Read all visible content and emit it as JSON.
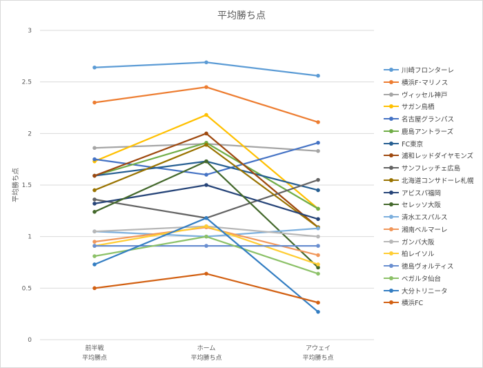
{
  "chart_data": {
    "type": "line",
    "title": "平均勝ち点",
    "xlabel": "",
    "ylabel": "平均勝ち点",
    "categories": [
      "前半戦\n平均勝点",
      "ホーム\n平均勝ち点",
      "アウェイ\n平均勝ち点"
    ],
    "ylim": [
      0,
      3
    ],
    "yticks": [
      "0",
      "0.5",
      "1",
      "1.5",
      "2",
      "2.5",
      "3"
    ],
    "grid": true,
    "legend_position": "right",
    "series": [
      {
        "name": "川崎フロンターレ",
        "color": "#5b9bd5",
        "values": [
          2.64,
          2.69,
          2.56
        ]
      },
      {
        "name": "横浜F･マリノス",
        "color": "#ed7d31",
        "values": [
          2.3,
          2.45,
          2.11
        ]
      },
      {
        "name": "ヴィッセル神戸",
        "color": "#a5a5a5",
        "values": [
          1.86,
          1.9,
          1.83
        ]
      },
      {
        "name": "サガン鳥栖",
        "color": "#ffc000",
        "values": [
          1.73,
          2.18,
          1.27
        ]
      },
      {
        "name": "名古屋グランパス",
        "color": "#4472c4",
        "values": [
          1.75,
          1.6,
          1.91
        ]
      },
      {
        "name": "鹿島アントラーズ",
        "color": "#70ad47",
        "values": [
          1.59,
          1.91,
          1.27
        ]
      },
      {
        "name": "FC東京",
        "color": "#255e91",
        "values": [
          1.59,
          1.73,
          1.45
        ]
      },
      {
        "name": "浦和レッドダイヤモンズ",
        "color": "#9e480e",
        "values": [
          1.59,
          2.0,
          1.09
        ]
      },
      {
        "name": "サンフレッチェ広島",
        "color": "#636363",
        "values": [
          1.36,
          1.18,
          1.55
        ]
      },
      {
        "name": "北海道コンサドーレ札幌",
        "color": "#997300",
        "values": [
          1.45,
          1.89,
          1.09
        ]
      },
      {
        "name": "アビスパ福岡",
        "color": "#264478",
        "values": [
          1.32,
          1.5,
          1.17
        ]
      },
      {
        "name": "セレッソ大阪",
        "color": "#43682b",
        "values": [
          1.24,
          1.73,
          0.7
        ]
      },
      {
        "name": "清水エスパルス",
        "color": "#7cafdd",
        "values": [
          1.05,
          1.0,
          1.08
        ]
      },
      {
        "name": "湘南ベルマーレ",
        "color": "#f1975a",
        "values": [
          0.95,
          1.09,
          0.82
        ]
      },
      {
        "name": "ガンバ大阪",
        "color": "#b7b7b7",
        "values": [
          1.05,
          1.1,
          1.0
        ]
      },
      {
        "name": "柏レイソル",
        "color": "#ffcd33",
        "values": [
          0.91,
          1.1,
          0.73
        ]
      },
      {
        "name": "徳島ヴォルティス",
        "color": "#698ed0",
        "values": [
          0.91,
          0.91,
          0.91
        ]
      },
      {
        "name": "ベガルタ仙台",
        "color": "#8cc168",
        "values": [
          0.81,
          1.0,
          0.64
        ]
      },
      {
        "name": "大分トリニータ",
        "color": "#327dc2",
        "values": [
          0.73,
          1.18,
          0.27
        ]
      },
      {
        "name": "横浜FC",
        "color": "#d26012",
        "values": [
          0.5,
          0.64,
          0.36
        ]
      }
    ]
  }
}
